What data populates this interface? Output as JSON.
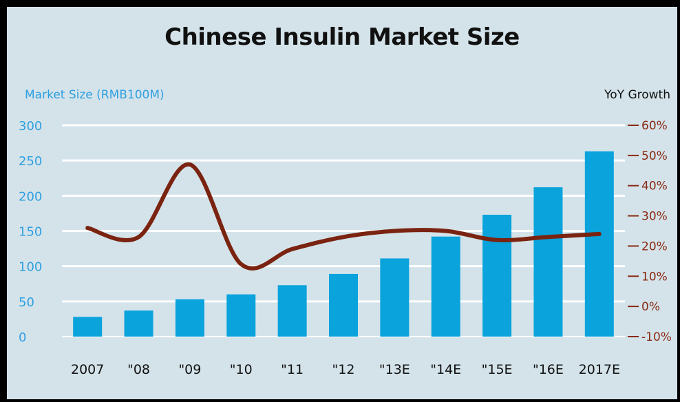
{
  "chart_data": {
    "type": "bar",
    "title": "Chinese Insulin Market Size",
    "ylabel": "Market Size (RMB100M)",
    "y2label": "YoY Growth",
    "categories": [
      "2007",
      "\"08",
      "\"09",
      "\"10",
      "\"11",
      "\"12",
      "\"13E",
      "\"14E",
      "\"15E",
      "\"16E",
      "2017E"
    ],
    "ylim": [
      0,
      300
    ],
    "yticks": [
      "0",
      "50",
      "100",
      "150",
      "200",
      "250",
      "300"
    ],
    "y2lim": [
      -10,
      60
    ],
    "y2ticks": [
      "-10%",
      "0%",
      "10%",
      "20%",
      "30%",
      "40%",
      "50%",
      "60%"
    ],
    "grid": true,
    "series": [
      {
        "type": "bar",
        "axis": "left",
        "values": [
          28,
          37,
          53,
          60,
          73,
          89,
          111,
          142,
          173,
          212,
          263
        ]
      },
      {
        "type": "line",
        "axis": "right",
        "values": [
          26,
          23,
          47,
          14,
          19,
          23,
          25,
          25,
          22,
          23,
          24
        ]
      }
    ],
    "colors": {
      "bars": "#0aa3dc",
      "line": "#7a2310",
      "left_ticks": "#2f9fe0",
      "right_ticks": "#8a2a12",
      "grid": "#ffffff",
      "background": "#d4e3ea"
    }
  }
}
